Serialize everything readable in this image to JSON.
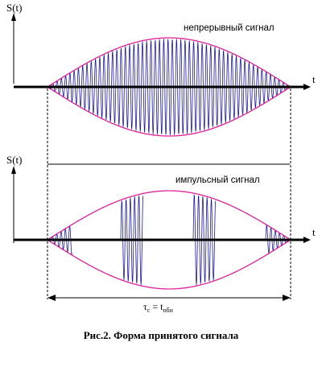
{
  "top_plot": {
    "y_label": "S(t)",
    "x_label": "t",
    "signal_label": "непрерывный сигнал"
  },
  "bottom_plot": {
    "y_label": "S(t)",
    "x_label": "t",
    "signal_label": "импульсный сигнал"
  },
  "duration_label": {
    "tau_symbol": "τ",
    "tau_subscript": "c",
    "equals": " = t",
    "t_subscript": "обн"
  },
  "caption": "Рис.2. Форма принятого  сигнала",
  "colors": {
    "envelope": "#e0209a",
    "carrier": "#1a1aa0",
    "axis": "#000000"
  }
}
